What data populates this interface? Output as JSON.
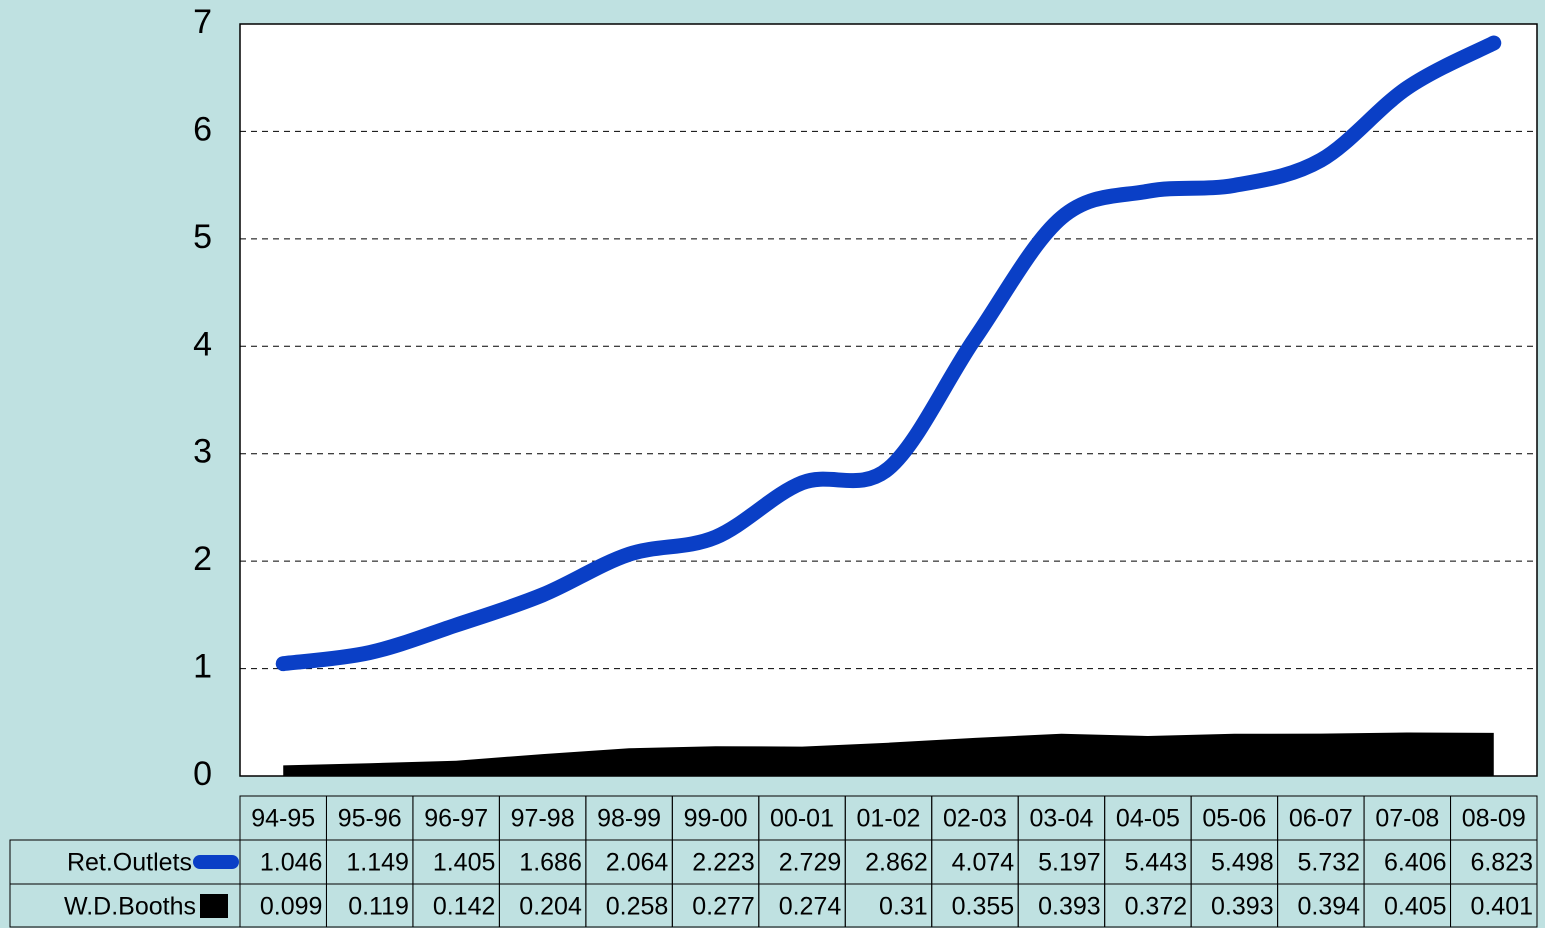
{
  "chart_data": {
    "type": "line",
    "categories": [
      "94-95",
      "95-96",
      "96-97",
      "97-98",
      "98-99",
      "99-00",
      "00-01",
      "01-02",
      "02-03",
      "03-04",
      "04-05",
      "05-06",
      "06-07",
      "07-08",
      "08-09"
    ],
    "series": [
      {
        "name": "Ret.Outlets",
        "color": "#0a3fc6",
        "style": "smooth-line",
        "values": [
          1.046,
          1.149,
          1.405,
          1.686,
          2.064,
          2.223,
          2.729,
          2.862,
          4.074,
          5.197,
          5.443,
          5.498,
          5.732,
          6.406,
          6.823
        ]
      },
      {
        "name": "W.D.Booths",
        "color": "#000000",
        "style": "area",
        "values": [
          0.099,
          0.119,
          0.142,
          0.204,
          0.258,
          0.277,
          0.274,
          0.31,
          0.355,
          0.393,
          0.372,
          0.393,
          0.394,
          0.405,
          0.401
        ]
      }
    ],
    "ylim": [
      0,
      7
    ],
    "yticks": [
      0,
      1,
      2,
      3,
      4,
      5,
      6,
      7
    ],
    "grid": true,
    "data_table": true
  }
}
